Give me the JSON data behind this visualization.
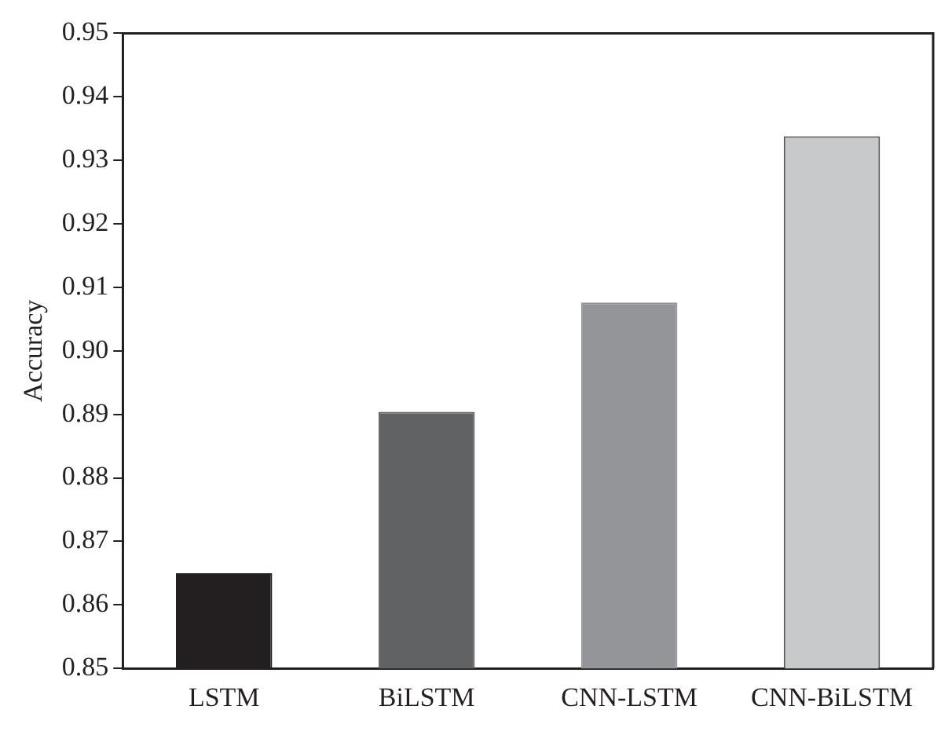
{
  "chart_data": {
    "type": "bar",
    "ylabel": "Accuracy",
    "categories": [
      "LSTM",
      "BiLSTM",
      "CNN-LSTM",
      "CNN-BiLSTM"
    ],
    "values": [
      0.865,
      0.8904,
      0.9076,
      0.9338
    ],
    "colors": [
      "#231f20",
      "#616264",
      "#939598",
      "#c8c9cb"
    ],
    "ylim": [
      0.85,
      0.95
    ],
    "yticks": [
      0.85,
      0.86,
      0.87,
      0.88,
      0.89,
      {
        "value": 0.9,
        "label": "0.90"
      },
      0.91,
      0.92,
      0.93,
      0.94,
      0.95
    ],
    "grid": false,
    "legend": false
  }
}
